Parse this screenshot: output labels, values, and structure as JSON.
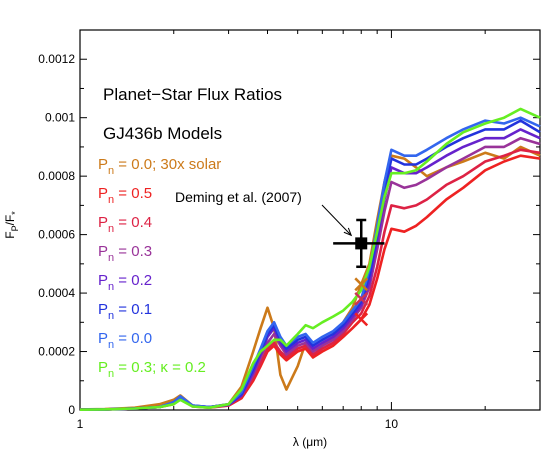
{
  "chart_data": {
    "type": "line",
    "xlabel": "λ (μm)",
    "ylabel": "F_P/F_*",
    "xscale": "log",
    "xlim": [
      1,
      30
    ],
    "ylim": [
      0,
      0.0013
    ],
    "xticks": [
      {
        "value": 1,
        "label": "1"
      },
      {
        "value": 10,
        "label": "10"
      }
    ],
    "yticks": [
      {
        "value": 0,
        "label": "0"
      },
      {
        "value": 0.0002,
        "label": "0.0002"
      },
      {
        "value": 0.0004,
        "label": "0.0004"
      },
      {
        "value": 0.0006,
        "label": "0.0006"
      },
      {
        "value": 0.0008,
        "label": "0.0008"
      },
      {
        "value": 0.001,
        "label": "0.001"
      },
      {
        "value": 0.0012,
        "label": "0.0012"
      }
    ],
    "annotations": {
      "title_line1": "Planet−Star Flux Ratios",
      "title_line2": "GJ436b Models",
      "observation_label": "Deming et al. (2007)"
    },
    "observation": {
      "x": 8.0,
      "y": 0.00057,
      "y_err": 8e-05,
      "x_range": [
        6.5,
        9.5
      ]
    },
    "band_markers": [
      {
        "x": 8.0,
        "y": 0.00043,
        "color": "#cc7a1a"
      },
      {
        "x": 8.0,
        "y": 0.00038,
        "color": "#cc3355"
      },
      {
        "x": 8.0,
        "y": 0.00031,
        "color": "#ee2222"
      }
    ],
    "series": [
      {
        "name": "P_n = 0.0; 30x solar",
        "label_main": "P",
        "label_sub": "n",
        "label_rest": " = 0.0; 30x solar",
        "color": "#cc7a1a",
        "x": [
          1,
          1.2,
          1.5,
          1.8,
          2.0,
          2.1,
          2.3,
          2.6,
          3.0,
          3.3,
          3.6,
          3.8,
          4.0,
          4.2,
          4.4,
          4.6,
          5.0,
          5.3,
          5.6,
          6.0,
          6.5,
          7.0,
          7.5,
          8.0,
          8.5,
          9.0,
          9.5,
          10,
          11,
          12,
          13,
          15,
          17,
          20,
          23,
          26,
          30
        ],
        "y": [
          2e-06,
          3e-06,
          8e-06,
          2e-05,
          3.5e-05,
          5e-05,
          1.5e-05,
          1e-05,
          2e-05,
          8e-05,
          0.0002,
          0.00028,
          0.00035,
          0.00028,
          0.00012,
          7e-05,
          0.00015,
          0.00023,
          0.00018,
          0.00022,
          0.00025,
          0.0003,
          0.00035,
          0.00043,
          0.0005,
          0.00065,
          0.00078,
          0.00087,
          0.00086,
          0.00083,
          0.0008,
          0.00083,
          0.00085,
          0.00088,
          0.00086,
          0.0009,
          0.00087
        ]
      },
      {
        "name": "P_n = 0.5",
        "label_main": "P",
        "label_sub": "n",
        "label_rest": " = 0.5",
        "color": "#ee2222",
        "x": [
          1,
          1.2,
          1.5,
          1.8,
          2.0,
          2.1,
          2.3,
          2.6,
          3.0,
          3.3,
          3.6,
          3.8,
          4.0,
          4.2,
          4.4,
          4.6,
          5.0,
          5.3,
          5.6,
          6.0,
          6.5,
          7.0,
          7.5,
          8.0,
          8.5,
          9.0,
          9.5,
          10,
          11,
          12,
          13,
          15,
          17,
          20,
          23,
          26,
          30
        ],
        "y": [
          1e-06,
          2e-06,
          5e-06,
          1e-05,
          2e-05,
          4e-05,
          1.2e-05,
          8e-06,
          1.5e-05,
          4e-05,
          0.0001,
          0.00015,
          0.0002,
          0.00022,
          0.00019,
          0.00017,
          0.0002,
          0.00021,
          0.00018,
          0.0002,
          0.00022,
          0.00025,
          0.00028,
          0.00031,
          0.00036,
          0.00045,
          0.00055,
          0.00062,
          0.00061,
          0.00063,
          0.00066,
          0.00072,
          0.00076,
          0.00082,
          0.00085,
          0.00087,
          0.00086
        ]
      },
      {
        "name": "P_n = 0.4",
        "label_main": "P",
        "label_sub": "n",
        "label_rest": " = 0.4",
        "color": "#dd2244",
        "x": [
          1,
          1.2,
          1.5,
          1.8,
          2.0,
          2.1,
          2.3,
          2.6,
          3.0,
          3.3,
          3.6,
          3.8,
          4.0,
          4.2,
          4.4,
          4.6,
          5.0,
          5.3,
          5.6,
          6.0,
          6.5,
          7.0,
          7.5,
          8.0,
          8.5,
          9.0,
          9.5,
          10,
          11,
          12,
          13,
          15,
          17,
          20,
          23,
          26,
          30
        ],
        "y": [
          1e-06,
          2e-06,
          5e-06,
          1e-05,
          2.2e-05,
          4.2e-05,
          1.3e-05,
          9e-06,
          1.6e-05,
          4.5e-05,
          0.00011,
          0.00016,
          0.00021,
          0.00023,
          0.0002,
          0.00018,
          0.00021,
          0.00022,
          0.00019,
          0.00021,
          0.00023,
          0.00026,
          0.0003,
          0.00033,
          0.00039,
          0.00049,
          0.00061,
          0.0007,
          0.00069,
          0.0007,
          0.00072,
          0.00077,
          0.0008,
          0.00085,
          0.00087,
          0.00089,
          0.00088
        ]
      },
      {
        "name": "P_n = 0.3",
        "label_main": "P",
        "label_sub": "n",
        "label_rest": " = 0.3",
        "color": "#993399",
        "x": [
          1,
          1.2,
          1.5,
          1.8,
          2.0,
          2.1,
          2.3,
          2.6,
          3.0,
          3.3,
          3.6,
          3.8,
          4.0,
          4.2,
          4.4,
          4.6,
          5.0,
          5.3,
          5.6,
          6.0,
          6.5,
          7.0,
          7.5,
          8.0,
          8.5,
          9.0,
          9.5,
          10,
          11,
          12,
          13,
          15,
          17,
          20,
          23,
          26,
          30
        ],
        "y": [
          1e-06,
          2e-06,
          5e-06,
          1e-05,
          2.4e-05,
          4.4e-05,
          1.4e-05,
          1e-05,
          1.7e-05,
          5e-05,
          0.00012,
          0.00018,
          0.00023,
          0.00026,
          0.00022,
          0.00019,
          0.00022,
          0.00023,
          0.0002,
          0.00022,
          0.00024,
          0.00027,
          0.00031,
          0.00035,
          0.00042,
          0.00055,
          0.00068,
          0.00078,
          0.00076,
          0.00077,
          0.00079,
          0.00083,
          0.00086,
          0.0009,
          0.0009,
          0.00093,
          0.00091
        ]
      },
      {
        "name": "P_n = 0.2",
        "label_main": "P",
        "label_sub": "n",
        "label_rest": " = 0.2",
        "color": "#6622cc",
        "x": [
          1,
          1.2,
          1.5,
          1.8,
          2.0,
          2.1,
          2.3,
          2.6,
          3.0,
          3.3,
          3.6,
          3.8,
          4.0,
          4.2,
          4.4,
          4.6,
          5.0,
          5.3,
          5.6,
          6.0,
          6.5,
          7.0,
          7.5,
          8.0,
          8.5,
          9.0,
          9.5,
          10,
          11,
          12,
          13,
          15,
          17,
          20,
          23,
          26,
          30
        ],
        "y": [
          1e-06,
          2e-06,
          5e-06,
          1e-05,
          2.5e-05,
          4.5e-05,
          1.4e-05,
          1e-05,
          1.8e-05,
          5e-05,
          0.00013,
          0.00019,
          0.00025,
          0.00028,
          0.00023,
          0.0002,
          0.00023,
          0.00024,
          0.00021,
          0.00023,
          0.00025,
          0.00028,
          0.00032,
          0.00036,
          0.00044,
          0.00058,
          0.00072,
          0.00083,
          0.00081,
          0.00081,
          0.00083,
          0.00087,
          0.0009,
          0.00093,
          0.00093,
          0.00096,
          0.00093
        ]
      },
      {
        "name": "P_n = 0.1",
        "label_main": "P",
        "label_sub": "n",
        "label_rest": " = 0.1",
        "color": "#2233dd",
        "x": [
          1,
          1.2,
          1.5,
          1.8,
          2.0,
          2.1,
          2.3,
          2.6,
          3.0,
          3.3,
          3.6,
          3.8,
          4.0,
          4.2,
          4.4,
          4.6,
          5.0,
          5.3,
          5.6,
          6.0,
          6.5,
          7.0,
          7.5,
          8.0,
          8.5,
          9.0,
          9.5,
          10,
          11,
          12,
          13,
          15,
          17,
          20,
          23,
          26,
          30
        ],
        "y": [
          1e-06,
          2e-06,
          5e-06,
          1e-05,
          2.6e-05,
          4.6e-05,
          1.5e-05,
          1e-05,
          1.9e-05,
          5.5e-05,
          0.00014,
          0.0002,
          0.00026,
          0.00029,
          0.00024,
          0.00021,
          0.00024,
          0.00025,
          0.00022,
          0.00024,
          0.00026,
          0.00029,
          0.00033,
          0.00037,
          0.00046,
          0.0006,
          0.00075,
          0.00086,
          0.00084,
          0.00084,
          0.00086,
          0.0009,
          0.00093,
          0.00096,
          0.00096,
          0.00099,
          0.00095
        ]
      },
      {
        "name": "P_n = 0.0",
        "label_main": "P",
        "label_sub": "n",
        "label_rest": " = 0.0",
        "color": "#3366ee",
        "x": [
          1,
          1.2,
          1.5,
          1.8,
          2.0,
          2.1,
          2.3,
          2.6,
          3.0,
          3.3,
          3.6,
          3.8,
          4.0,
          4.2,
          4.4,
          4.6,
          5.0,
          5.3,
          5.6,
          6.0,
          6.5,
          7.0,
          7.5,
          8.0,
          8.5,
          9.0,
          9.5,
          10,
          11,
          12,
          13,
          15,
          17,
          20,
          23,
          26,
          30
        ],
        "y": [
          1e-06,
          2e-06,
          5e-06,
          1e-05,
          2.7e-05,
          4.7e-05,
          1.5e-05,
          1e-05,
          2e-05,
          6e-05,
          0.00015,
          0.00021,
          0.00027,
          0.0003,
          0.00025,
          0.00022,
          0.00025,
          0.00026,
          0.00023,
          0.00025,
          0.00027,
          0.0003,
          0.00034,
          0.00038,
          0.00048,
          0.00063,
          0.00078,
          0.00089,
          0.00087,
          0.00087,
          0.00089,
          0.00093,
          0.00096,
          0.00099,
          0.00098,
          0.001,
          0.00097
        ]
      },
      {
        "name": "P_n = 0.3; κ = 0.2",
        "label_main": "P",
        "label_sub": "n",
        "label_rest": " = 0.3; κ = 0.2",
        "color": "#66ee22",
        "x": [
          1,
          1.2,
          1.5,
          1.8,
          2.0,
          2.1,
          2.3,
          2.6,
          3.0,
          3.3,
          3.6,
          3.8,
          4.0,
          4.2,
          4.4,
          4.6,
          5.0,
          5.3,
          5.6,
          6.0,
          6.5,
          7.0,
          7.5,
          8.0,
          8.5,
          9.0,
          9.5,
          10,
          11,
          12,
          13,
          15,
          17,
          20,
          23,
          26,
          30
        ],
        "y": [
          1e-06,
          2e-06,
          5e-06,
          1e-05,
          2e-05,
          3.5e-05,
          1.2e-05,
          8e-06,
          2e-05,
          7e-05,
          0.00016,
          0.0002,
          0.00022,
          0.00024,
          0.00024,
          0.00022,
          0.00026,
          0.00029,
          0.00028,
          0.0003,
          0.00032,
          0.00034,
          0.00037,
          0.00041,
          0.00049,
          0.00061,
          0.00073,
          0.00081,
          0.00081,
          0.00082,
          0.00085,
          0.00091,
          0.00095,
          0.00098,
          0.001,
          0.00103,
          0.001
        ]
      }
    ],
    "grid": false,
    "legend_placement": "left-inside"
  }
}
